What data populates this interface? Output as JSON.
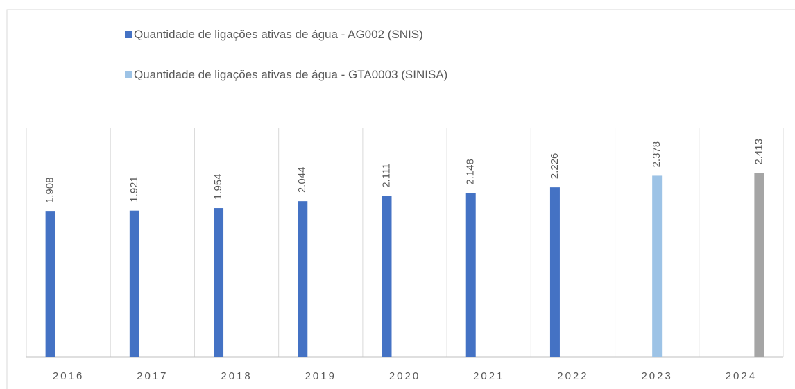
{
  "chart_data": {
    "type": "bar",
    "categories": [
      "2016",
      "2017",
      "2018",
      "2019",
      "2020",
      "2021",
      "2022",
      "2023",
      "2024"
    ],
    "series": [
      {
        "name": "Quantidade de ligações ativas de água - AG002 (SNIS)",
        "color": "#4472c4",
        "values": [
          1.908,
          1.921,
          1.954,
          2.044,
          2.111,
          2.148,
          2.226,
          null,
          null
        ]
      },
      {
        "name": "Quantidade de ligações ativas de água - GTA0003 (SINISA)",
        "color": "#9dc3e6",
        "values": [
          null,
          null,
          null,
          null,
          null,
          null,
          null,
          2.378,
          null
        ]
      },
      {
        "color": "#a5a5a5",
        "values": [
          null,
          null,
          null,
          null,
          null,
          null,
          null,
          null,
          2.413
        ]
      }
    ],
    "ylim": [
      0,
      3
    ]
  }
}
